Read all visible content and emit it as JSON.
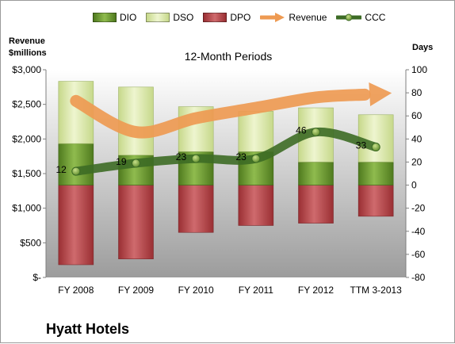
{
  "legend": {
    "dio": "DIO",
    "dso": "DSO",
    "dpo": "DPO",
    "revenue": "Revenue",
    "ccc": "CCC"
  },
  "axes": {
    "left_title": "Revenue\n$millions",
    "right_title": "Days"
  },
  "subtitle": "12-Month Periods",
  "title": "Hyatt Hotels",
  "colors": {
    "dio": "#6f9a33",
    "dso": "#d7e6a4",
    "dpo": "#b8474b",
    "revenue": "#ee9a52",
    "ccc": "#3d6b25",
    "plot_top": "#ffffff",
    "plot_bottom": "#9c9c9c"
  },
  "chart_data": {
    "type": "bar",
    "categories": [
      "FY 2008",
      "FY 2009",
      "FY 2010",
      "FY 2011",
      "FY 2012",
      "TTM 3-2013"
    ],
    "left_axis": {
      "ylim": [
        0,
        3000
      ],
      "ticks": [
        0,
        500,
        1000,
        1500,
        2000,
        2500,
        3000
      ],
      "tick_labels": [
        "$-",
        "$500",
        "$1,000",
        "$1,500",
        "$2,000",
        "$2,500",
        "$3,000"
      ]
    },
    "right_axis": {
      "ylim": [
        -80,
        100
      ],
      "ticks": [
        -80,
        -60,
        -40,
        -20,
        0,
        20,
        40,
        60,
        80,
        100
      ],
      "tick_labels": [
        "-80",
        "-60",
        "-40",
        "-20",
        "0",
        "20",
        "40",
        "60",
        "80",
        "100"
      ]
    },
    "series": [
      {
        "name": "DIO",
        "axis": "right",
        "values": [
          36,
          26,
          29,
          29,
          20,
          20
        ]
      },
      {
        "name": "DSO",
        "axis": "right",
        "values": [
          54,
          59,
          39,
          35,
          47,
          41
        ]
      },
      {
        "name": "DPO",
        "axis": "right",
        "values": [
          -69,
          -64,
          -41,
          -35,
          -33,
          -27
        ]
      },
      {
        "name": "Revenue",
        "axis": "left",
        "values": [
          2550,
          2100,
          2300,
          2450,
          2600,
          2650
        ]
      },
      {
        "name": "CCC",
        "axis": "right",
        "values": [
          12,
          19,
          23,
          23,
          46,
          33
        ],
        "labels": [
          "12",
          "19",
          "23",
          "23",
          "46",
          "33"
        ]
      }
    ],
    "grid": false,
    "legend_position": "top"
  }
}
